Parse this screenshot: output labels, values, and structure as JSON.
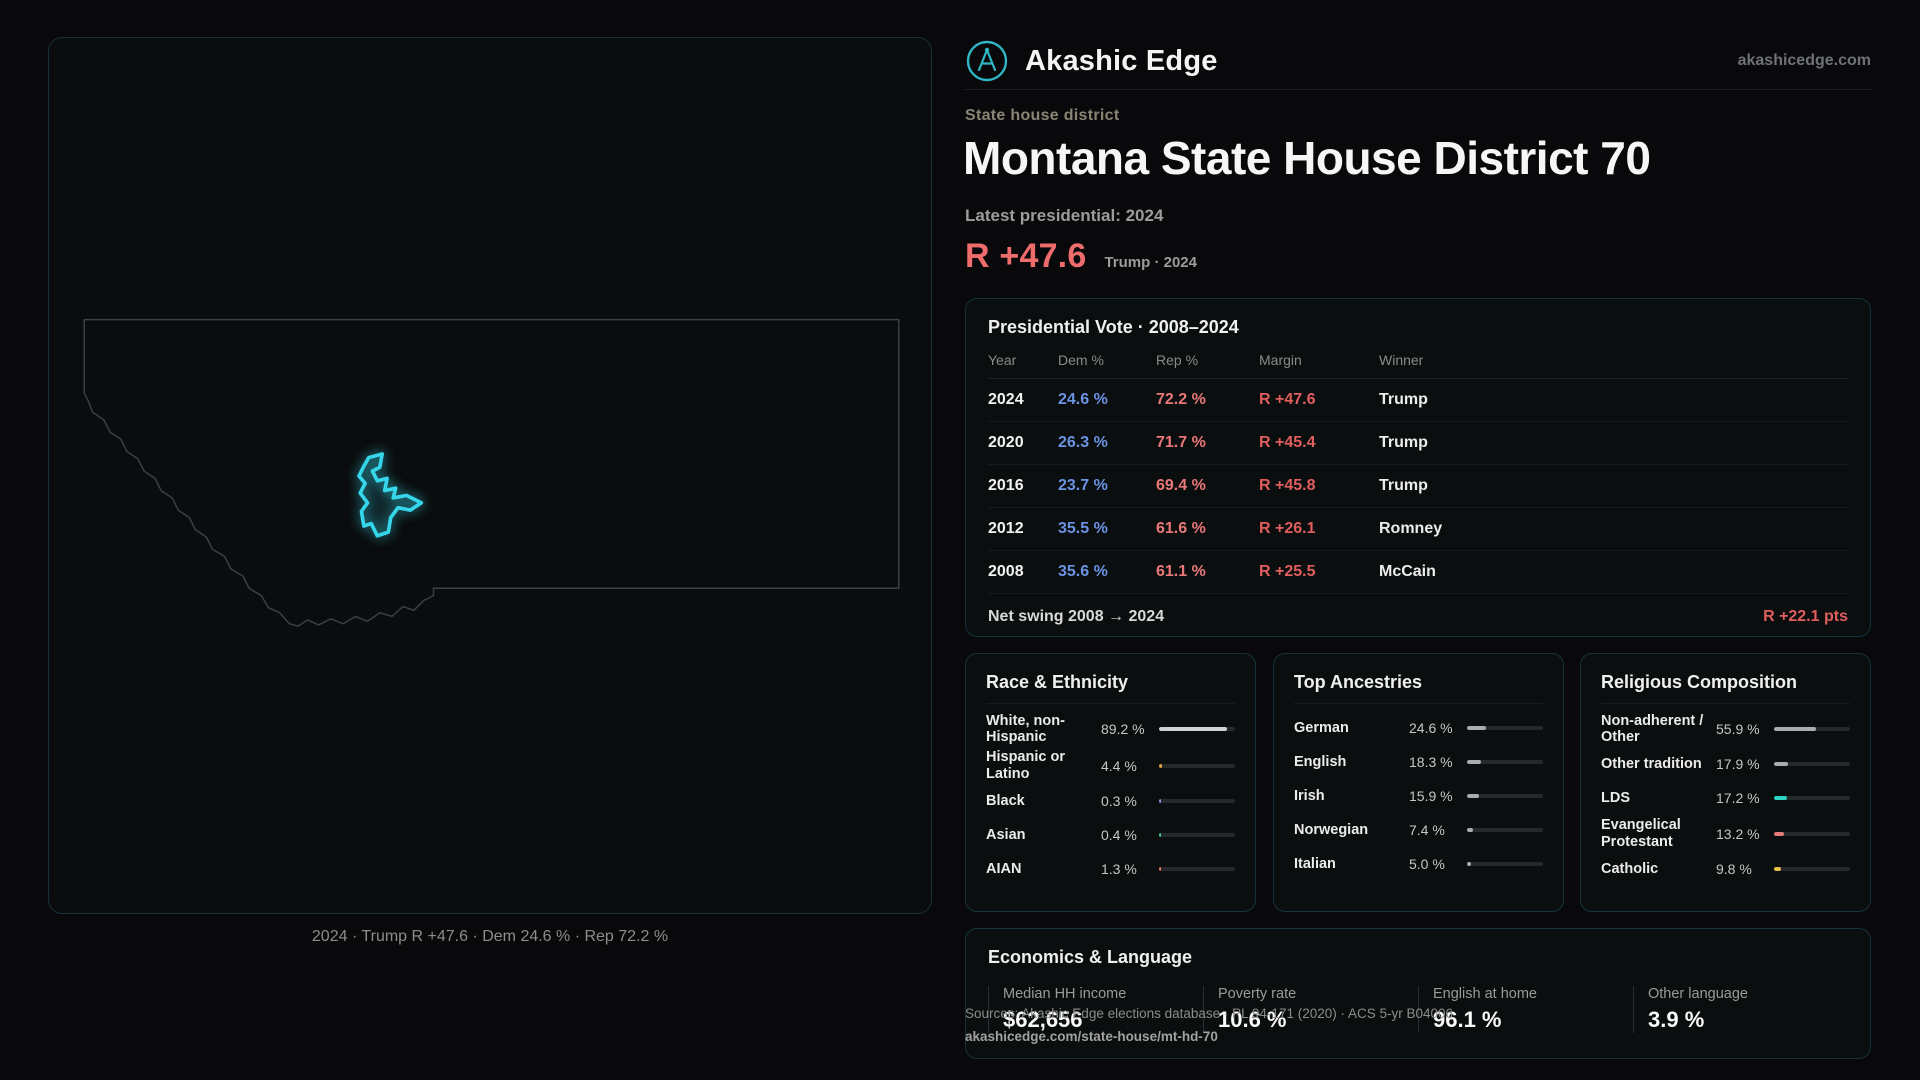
{
  "brand": {
    "name": "Akashic Edge",
    "domain": "akashicedge.com"
  },
  "page": {
    "eyebrow": "State house district",
    "title": "Montana State House District 70",
    "latest_label": "Latest presidential: 2024",
    "headline_margin": "R +47.6",
    "headline_note": "Trump · 2024"
  },
  "map": {
    "caption": "2024 · Trump R +47.6 · Dem 24.6 % · Rep 72.2 %",
    "outline_color": "#3c4146",
    "district_color": "#35d6ea"
  },
  "colors": {
    "accent_red": "#ee6c6c",
    "dem_blue": "#6b93e4",
    "rep_red": "#ea7878",
    "district_cyan": "#35d6ea"
  },
  "pres_table": {
    "title": "Presidential Vote · 2008–2024",
    "columns": [
      "Year",
      "Dem %",
      "Rep %",
      "Margin",
      "Winner"
    ],
    "rows": [
      {
        "year": "2024",
        "dem": "24.6 %",
        "rep": "72.2 %",
        "margin": "R +47.6",
        "winner": "Trump"
      },
      {
        "year": "2020",
        "dem": "26.3 %",
        "rep": "71.7 %",
        "margin": "R +45.4",
        "winner": "Trump"
      },
      {
        "year": "2016",
        "dem": "23.7 %",
        "rep": "69.4 %",
        "margin": "R +45.8",
        "winner": "Trump"
      },
      {
        "year": "2012",
        "dem": "35.5 %",
        "rep": "61.6 %",
        "margin": "R +26.1",
        "winner": "Romney"
      },
      {
        "year": "2008",
        "dem": "35.6 %",
        "rep": "61.1 %",
        "margin": "R +25.5",
        "winner": "McCain"
      }
    ],
    "net_swing_label": "Net swing 2008 → 2024",
    "net_swing_value": "R +22.1 pts"
  },
  "race": {
    "title": "Race & Ethnicity",
    "rows": [
      {
        "label": "White, non-Hispanic",
        "value": "89.2 %",
        "pct": 89.2,
        "color": "#cfd2d4"
      },
      {
        "label": "Hispanic or Latino",
        "value": "4.4 %",
        "pct": 4.4,
        "color": "#e8a23d"
      },
      {
        "label": "Black",
        "value": "0.3 %",
        "pct": 0.3,
        "color": "#9f86e8"
      },
      {
        "label": "Asian",
        "value": "0.4 %",
        "pct": 0.4,
        "color": "#45c98e"
      },
      {
        "label": "AIAN",
        "value": "1.3 %",
        "pct": 1.3,
        "color": "#e07a4e"
      }
    ]
  },
  "ancestries": {
    "title": "Top Ancestries",
    "rows": [
      {
        "label": "German",
        "value": "24.6 %",
        "pct": 24.6,
        "color": "#a9adb2"
      },
      {
        "label": "English",
        "value": "18.3 %",
        "pct": 18.3,
        "color": "#a9adb2"
      },
      {
        "label": "Irish",
        "value": "15.9 %",
        "pct": 15.9,
        "color": "#a9adb2"
      },
      {
        "label": "Norwegian",
        "value": "7.4 %",
        "pct": 7.4,
        "color": "#a9adb2"
      },
      {
        "label": "Italian",
        "value": "5.0 %",
        "pct": 5.0,
        "color": "#a9adb2"
      }
    ]
  },
  "religion": {
    "title": "Religious Composition",
    "rows": [
      {
        "label": "Non-adherent / Other",
        "value": "55.9 %",
        "pct": 55.9,
        "color": "#a9adb2"
      },
      {
        "label": "Other tradition",
        "value": "17.9 %",
        "pct": 17.9,
        "color": "#a9adb2"
      },
      {
        "label": "LDS",
        "value": "17.2 %",
        "pct": 17.2,
        "color": "#2fd4c2"
      },
      {
        "label": "Evangelical Protestant",
        "value": "13.2 %",
        "pct": 13.2,
        "color": "#e87b7b"
      },
      {
        "label": "Catholic",
        "value": "9.8 %",
        "pct": 9.8,
        "color": "#e8c04e"
      }
    ]
  },
  "economics": {
    "title": "Economics & Language",
    "stats": [
      {
        "label": "Median HH income",
        "value": "$62,656"
      },
      {
        "label": "Poverty rate",
        "value": "10.6 %"
      },
      {
        "label": "English at home",
        "value": "96.1 %"
      },
      {
        "label": "Other language",
        "value": "3.9 %"
      }
    ]
  },
  "footer": {
    "sources": "Sources: Akashic Edge elections database · PL 94-171 (2020) · ACS 5-yr B04006",
    "link": "akashicedge.com/state-house/mt-hd-70"
  }
}
